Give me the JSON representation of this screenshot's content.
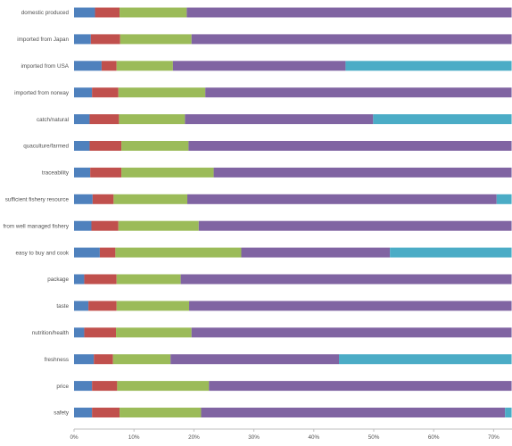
{
  "chart_data": {
    "type": "bar",
    "orientation": "horizontal",
    "stacked": true,
    "title": "",
    "xlabel": "",
    "ylabel": "",
    "xlim": [
      0,
      73
    ],
    "x_ticks": [
      "0%",
      "10%",
      "20%",
      "30%",
      "40%",
      "50%",
      "60%",
      "70%"
    ],
    "grid": false,
    "categories": [
      "domestic produced",
      "imported from Japan",
      "imported from USA",
      "imported from norway",
      "catch/natural",
      "quaculture/farmed",
      "traceability",
      "sufficient fishery resource",
      "from well managed fishery",
      "easy to buy and cook",
      "package",
      "taste",
      "nutrition/health",
      "freshness",
      "price",
      "safety"
    ],
    "series": [
      {
        "color": "#4F81BD",
        "values": [
          3.5,
          2.8,
          4.6,
          3.0,
          2.6,
          2.6,
          2.7,
          3.1,
          2.9,
          4.3,
          1.7,
          2.4,
          1.7,
          3.3,
          3.0,
          3.0
        ]
      },
      {
        "color": "#C0504D",
        "values": [
          4.1,
          4.9,
          2.5,
          4.4,
          4.9,
          5.3,
          5.2,
          3.5,
          4.5,
          2.6,
          5.4,
          4.7,
          5.3,
          3.2,
          4.2,
          4.6
        ]
      },
      {
        "color": "#9BBB59",
        "values": [
          11.2,
          11.9,
          9.4,
          14.5,
          11.0,
          11.2,
          15.4,
          12.3,
          13.4,
          21.0,
          10.7,
          12.1,
          12.6,
          9.6,
          15.3,
          13.6
        ]
      },
      {
        "color": "#8064A2",
        "values": [
          54.2,
          53.4,
          28.8,
          51.1,
          31.4,
          53.9,
          49.7,
          51.6,
          52.2,
          24.8,
          55.2,
          53.8,
          53.4,
          28.1,
          50.5,
          50.7
        ]
      },
      {
        "color": "#4BACC6",
        "values": [
          0,
          0,
          27.7,
          0,
          23.1,
          0,
          0,
          2.5,
          0,
          20.3,
          0,
          0,
          0,
          28.8,
          0,
          1.1
        ]
      }
    ]
  }
}
